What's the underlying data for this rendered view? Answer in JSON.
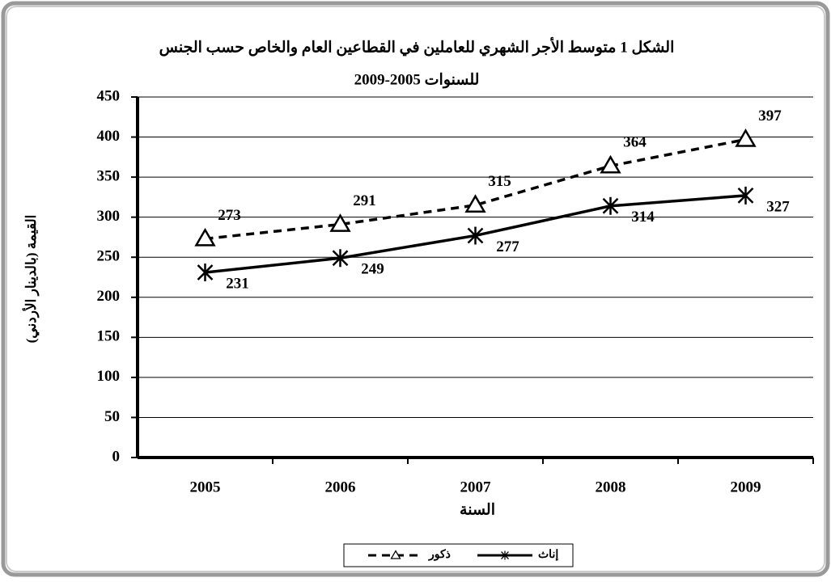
{
  "chart_data": {
    "type": "line",
    "title": "الشكل 1 متوسط الأجر الشهري للعاملين في القطاعين العام والخاص حسب الجنس",
    "subtitle": "للسنوات 2005-2009",
    "x_label": "السنة",
    "y_label": "القيمة (بالدينار الأردني)",
    "categories": [
      "2005",
      "2006",
      "2007",
      "2008",
      "2009"
    ],
    "series": [
      {
        "name": "ذكور",
        "color": "#000000",
        "line_style": "dashed",
        "marker": "triangle",
        "values": [
          273,
          291,
          315,
          364,
          397
        ]
      },
      {
        "name": "إناث",
        "color": "#000000",
        "line_style": "solid",
        "marker": "asterisk",
        "values": [
          231,
          249,
          277,
          314,
          327
        ]
      }
    ],
    "ylim": [
      0,
      450
    ],
    "yticks": [
      0,
      50,
      100,
      150,
      200,
      250,
      300,
      350,
      400,
      450
    ],
    "grid": true,
    "legend": "bottom"
  }
}
